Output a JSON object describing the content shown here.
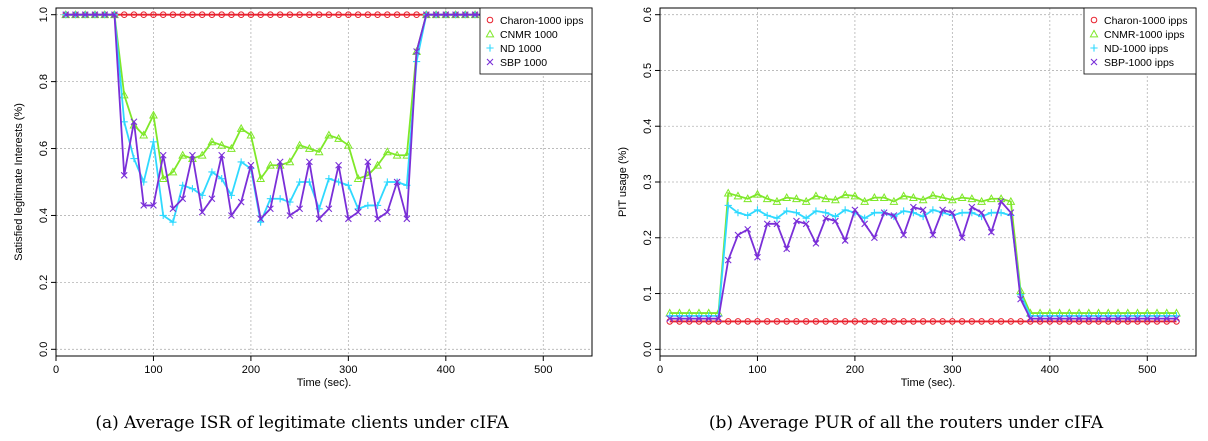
{
  "chart_data": [
    {
      "type": "line",
      "caption": "(a) Average ISR of legitimate clients under cIFA",
      "xlabel": "Time (sec).",
      "ylabel": "Satisfied legitimate Interests (%)",
      "xlim": [
        0,
        550
      ],
      "ylim": [
        -0.02,
        1.02
      ],
      "xticks": [
        0,
        100,
        200,
        300,
        400,
        500
      ],
      "yticks": [
        0.0,
        0.2,
        0.4,
        0.6,
        0.8,
        1.0
      ],
      "ytick_labels": [
        "0.0",
        "0.2",
        "0.4",
        "0.6",
        "0.8",
        "1.0"
      ],
      "grid": true,
      "legend_position": "top-right",
      "x": [
        10,
        20,
        30,
        40,
        50,
        60,
        70,
        80,
        90,
        100,
        110,
        120,
        130,
        140,
        150,
        160,
        170,
        180,
        190,
        200,
        210,
        220,
        230,
        240,
        250,
        260,
        270,
        280,
        290,
        300,
        310,
        320,
        330,
        340,
        350,
        360,
        370,
        380,
        390,
        400,
        410,
        420,
        430,
        440
      ],
      "series": [
        {
          "name": "Charon-1000 ipps",
          "color": "#e8212e",
          "marker": "circle",
          "values": [
            1,
            1,
            1,
            1,
            1,
            1,
            1,
            1,
            1,
            1,
            1,
            1,
            1,
            1,
            1,
            1,
            1,
            1,
            1,
            1,
            1,
            1,
            1,
            1,
            1,
            1,
            1,
            1,
            1,
            1,
            1,
            1,
            1,
            1,
            1,
            1,
            1,
            1,
            1,
            1,
            1,
            1,
            1,
            1
          ]
        },
        {
          "name": "CNMR 1000",
          "color": "#7fe829",
          "marker": "triangle",
          "values": [
            1,
            1,
            1,
            1,
            1,
            1,
            0.76,
            0.67,
            0.64,
            0.7,
            0.51,
            0.53,
            0.58,
            0.57,
            0.58,
            0.62,
            0.61,
            0.6,
            0.66,
            0.64,
            0.51,
            0.55,
            0.55,
            0.56,
            0.61,
            0.6,
            0.59,
            0.64,
            0.63,
            0.61,
            0.51,
            0.52,
            0.55,
            0.59,
            0.58,
            0.58,
            0.89,
            1,
            1,
            1,
            1,
            1,
            1,
            1
          ]
        },
        {
          "name": "ND 1000",
          "color": "#2fd9ff",
          "marker": "plus",
          "values": [
            1,
            1,
            1,
            1,
            1,
            1,
            0.68,
            0.57,
            0.5,
            0.62,
            0.4,
            0.38,
            0.49,
            0.48,
            0.46,
            0.53,
            0.51,
            0.46,
            0.56,
            0.54,
            0.38,
            0.45,
            0.45,
            0.44,
            0.5,
            0.5,
            0.42,
            0.51,
            0.5,
            0.49,
            0.42,
            0.43,
            0.43,
            0.5,
            0.5,
            0.49,
            0.86,
            1,
            1,
            1,
            1,
            1,
            1,
            1
          ]
        },
        {
          "name": "SBP 1000",
          "color": "#7a2fd8",
          "marker": "cross",
          "values": [
            1,
            1,
            1,
            1,
            1,
            1,
            0.52,
            0.68,
            0.43,
            0.43,
            0.58,
            0.42,
            0.45,
            0.58,
            0.41,
            0.45,
            0.58,
            0.4,
            0.44,
            0.55,
            0.39,
            0.42,
            0.56,
            0.4,
            0.42,
            0.56,
            0.39,
            0.42,
            0.55,
            0.39,
            0.41,
            0.56,
            0.39,
            0.41,
            0.5,
            0.39,
            0.89,
            1,
            1,
            1,
            1,
            1,
            1,
            1
          ]
        }
      ]
    },
    {
      "type": "line",
      "caption": "(b) Average PUR of all the routers under cIFA",
      "xlabel": "Time (sec).",
      "ylabel": "PIT usage (%)",
      "xlim": [
        0,
        550
      ],
      "ylim": [
        -0.012,
        0.612
      ],
      "xticks": [
        0,
        100,
        200,
        300,
        400,
        500
      ],
      "yticks": [
        0.0,
        0.1,
        0.2,
        0.3,
        0.4,
        0.5,
        0.6
      ],
      "ytick_labels": [
        "0.0",
        "0.1",
        "0.2",
        "0.3",
        "0.4",
        "0.5",
        "0.6"
      ],
      "grid": true,
      "legend_position": "top-right",
      "x": [
        10,
        20,
        30,
        40,
        50,
        60,
        70,
        80,
        90,
        100,
        110,
        120,
        130,
        140,
        150,
        160,
        170,
        180,
        190,
        200,
        210,
        220,
        230,
        240,
        250,
        260,
        270,
        280,
        290,
        300,
        310,
        320,
        330,
        340,
        350,
        360,
        370,
        380,
        390,
        400,
        410,
        420,
        430,
        440,
        450,
        460,
        470,
        480,
        490,
        500,
        510,
        520,
        530
      ],
      "series": [
        {
          "name": "Charon-1000 ipps",
          "color": "#e8212e",
          "marker": "circle",
          "values": [
            0.05,
            0.05,
            0.05,
            0.05,
            0.05,
            0.05,
            0.05,
            0.05,
            0.05,
            0.05,
            0.05,
            0.05,
            0.05,
            0.05,
            0.05,
            0.05,
            0.05,
            0.05,
            0.05,
            0.05,
            0.05,
            0.05,
            0.05,
            0.05,
            0.05,
            0.05,
            0.05,
            0.05,
            0.05,
            0.05,
            0.05,
            0.05,
            0.05,
            0.05,
            0.05,
            0.05,
            0.05,
            0.05,
            0.05,
            0.05,
            0.05,
            0.05,
            0.05,
            0.05,
            0.05,
            0.05,
            0.05,
            0.05,
            0.05,
            0.05,
            0.05,
            0.05,
            0.05
          ]
        },
        {
          "name": "CNMR-1000 ipps",
          "color": "#7fe829",
          "marker": "triangle",
          "values": [
            0.065,
            0.065,
            0.065,
            0.065,
            0.065,
            0.065,
            0.28,
            0.275,
            0.27,
            0.278,
            0.27,
            0.265,
            0.272,
            0.27,
            0.265,
            0.275,
            0.27,
            0.268,
            0.277,
            0.275,
            0.265,
            0.272,
            0.272,
            0.265,
            0.275,
            0.272,
            0.268,
            0.276,
            0.272,
            0.268,
            0.272,
            0.27,
            0.265,
            0.27,
            0.27,
            0.265,
            0.105,
            0.065,
            0.065,
            0.065,
            0.065,
            0.065,
            0.065,
            0.065,
            0.065,
            0.065,
            0.065,
            0.065,
            0.065,
            0.065,
            0.065,
            0.065,
            0.065
          ]
        },
        {
          "name": "ND-1000 ipps",
          "color": "#2fd9ff",
          "marker": "plus",
          "values": [
            0.06,
            0.06,
            0.06,
            0.06,
            0.06,
            0.06,
            0.258,
            0.245,
            0.24,
            0.25,
            0.24,
            0.235,
            0.248,
            0.245,
            0.235,
            0.248,
            0.245,
            0.238,
            0.25,
            0.245,
            0.235,
            0.245,
            0.245,
            0.238,
            0.248,
            0.245,
            0.238,
            0.25,
            0.245,
            0.24,
            0.245,
            0.245,
            0.238,
            0.245,
            0.245,
            0.24,
            0.098,
            0.06,
            0.06,
            0.06,
            0.06,
            0.06,
            0.06,
            0.06,
            0.06,
            0.06,
            0.06,
            0.06,
            0.06,
            0.06,
            0.06,
            0.06,
            0.06
          ]
        },
        {
          "name": "SBP-1000 ipps",
          "color": "#7a2fd8",
          "marker": "cross",
          "values": [
            0.055,
            0.055,
            0.055,
            0.055,
            0.055,
            0.055,
            0.16,
            0.205,
            0.215,
            0.165,
            0.225,
            0.225,
            0.18,
            0.23,
            0.225,
            0.19,
            0.235,
            0.23,
            0.195,
            0.25,
            0.225,
            0.2,
            0.245,
            0.24,
            0.205,
            0.255,
            0.25,
            0.205,
            0.25,
            0.245,
            0.2,
            0.255,
            0.245,
            0.21,
            0.265,
            0.245,
            0.09,
            0.055,
            0.055,
            0.055,
            0.055,
            0.055,
            0.055,
            0.055,
            0.055,
            0.055,
            0.055,
            0.055,
            0.055,
            0.055,
            0.055,
            0.055,
            0.055
          ]
        }
      ]
    }
  ]
}
